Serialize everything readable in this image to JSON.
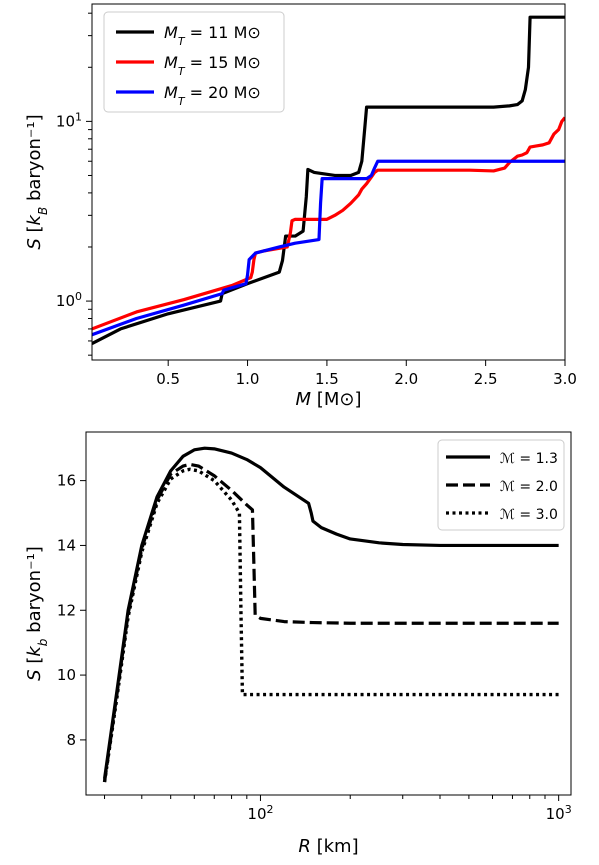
{
  "chart_data": [
    {
      "type": "line",
      "xlabel": "M [M⊙]",
      "ylabel": "S [k_B baryon⁻¹]",
      "xlim": [
        0.02,
        3.0
      ],
      "ylim": [
        0.47,
        45
      ],
      "yscale": "log",
      "x_ticks": [
        0.5,
        1.0,
        1.5,
        2.0,
        2.5,
        3.0
      ],
      "x_tick_labels": [
        "0.5",
        "1.0",
        "1.5",
        "2.0",
        "2.5",
        "3.0"
      ],
      "y_ticks": [
        1,
        10
      ],
      "y_tick_labels": [
        "10⁰",
        "10¹"
      ],
      "legend": "top-left",
      "grid": false,
      "series": [
        {
          "name": "M_T = 11 M⊙",
          "color": "#000000",
          "x": [
            0.02,
            0.2,
            0.5,
            0.83,
            0.84,
            1.0,
            1.2,
            1.22,
            1.24,
            1.3,
            1.35,
            1.37,
            1.38,
            1.42,
            1.55,
            1.65,
            1.7,
            1.72,
            1.74,
            1.75,
            2.0,
            2.3,
            2.55,
            2.65,
            2.7,
            2.73,
            2.75,
            2.77,
            2.78,
            3.0
          ],
          "y": [
            0.58,
            0.7,
            0.85,
            1.0,
            1.1,
            1.25,
            1.45,
            1.68,
            2.3,
            2.3,
            2.45,
            3.8,
            5.4,
            5.2,
            5.0,
            5.0,
            5.2,
            6.0,
            9.5,
            12.0,
            12.0,
            12.0,
            12.0,
            12.2,
            12.4,
            13.0,
            15.0,
            20.0,
            38.0,
            38.0
          ]
        },
        {
          "name": "M_T = 15 M⊙",
          "color": "#ff0000",
          "x": [
            0.02,
            0.3,
            0.6,
            0.9,
            1.02,
            1.03,
            1.04,
            1.05,
            1.1,
            1.25,
            1.27,
            1.28,
            1.3,
            1.5,
            1.55,
            1.6,
            1.65,
            1.7,
            1.72,
            1.75,
            1.78,
            1.8,
            1.82,
            1.85,
            2.0,
            2.2,
            2.4,
            2.55,
            2.62,
            2.65,
            2.7,
            2.73,
            2.76,
            2.78,
            2.82,
            2.86,
            2.9,
            2.93,
            2.96,
            2.98,
            3.0
          ],
          "y": [
            0.7,
            0.87,
            1.02,
            1.22,
            1.35,
            1.45,
            1.7,
            1.85,
            1.9,
            2.0,
            2.4,
            2.8,
            2.85,
            2.85,
            3.0,
            3.2,
            3.5,
            3.9,
            4.2,
            4.5,
            4.9,
            5.2,
            5.35,
            5.35,
            5.35,
            5.35,
            5.35,
            5.3,
            5.5,
            5.9,
            6.4,
            6.5,
            6.7,
            7.2,
            7.3,
            7.4,
            7.6,
            8.5,
            9.0,
            10.0,
            10.5
          ]
        },
        {
          "name": "M_T = 20 M⊙",
          "color": "#0000ff",
          "x": [
            0.02,
            0.3,
            0.6,
            0.84,
            0.85,
            0.99,
            1.0,
            1.01,
            1.05,
            1.2,
            1.3,
            1.45,
            1.46,
            1.47,
            1.48,
            1.6,
            1.75,
            1.78,
            1.8,
            1.82,
            2.0,
            2.5,
            3.0
          ],
          "y": [
            0.65,
            0.8,
            0.95,
            1.1,
            1.15,
            1.25,
            1.4,
            1.7,
            1.85,
            2.0,
            2.1,
            2.2,
            3.5,
            4.8,
            4.8,
            4.8,
            4.8,
            5.0,
            5.5,
            6.0,
            6.0,
            6.0,
            6.0
          ]
        }
      ]
    },
    {
      "type": "line",
      "xlabel": "R [km]",
      "ylabel": "S [k_b baryon⁻¹]",
      "xscale": "log",
      "xlim": [
        26,
        1100
      ],
      "ylim": [
        6.3,
        17.5
      ],
      "x_ticks": [
        100,
        1000
      ],
      "x_tick_labels": [
        "10²",
        "10³"
      ],
      "y_ticks": [
        8,
        10,
        12,
        14,
        16
      ],
      "y_tick_labels": [
        "8",
        "10",
        "12",
        "14",
        "16"
      ],
      "legend": "top-right",
      "grid": false,
      "series": [
        {
          "name": "ℳ = 1.3",
          "dash": "solid",
          "x": [
            30,
            33,
            36,
            40,
            45,
            50,
            55,
            60,
            65,
            70,
            80,
            90,
            100,
            120,
            145,
            148,
            150,
            160,
            180,
            200,
            250,
            300,
            400,
            600,
            1000
          ],
          "y": [
            6.8,
            9.5,
            12.0,
            14.0,
            15.5,
            16.3,
            16.75,
            16.95,
            17.0,
            16.98,
            16.85,
            16.65,
            16.4,
            15.8,
            15.3,
            15.0,
            14.75,
            14.55,
            14.35,
            14.2,
            14.08,
            14.03,
            14.0,
            14.0,
            14.0
          ]
        },
        {
          "name": "ℳ = 2.0",
          "dash": "dashed",
          "x": [
            30,
            33,
            36,
            40,
            45,
            50,
            55,
            58,
            62,
            70,
            80,
            90,
            94,
            95,
            96,
            100,
            120,
            150,
            200,
            300,
            500,
            1000
          ],
          "y": [
            6.7,
            9.4,
            11.9,
            13.9,
            15.4,
            16.2,
            16.45,
            16.5,
            16.45,
            16.15,
            15.7,
            15.25,
            15.1,
            13.5,
            11.85,
            11.75,
            11.65,
            11.62,
            11.6,
            11.6,
            11.6,
            11.6
          ]
        },
        {
          "name": "ℳ = 3.0",
          "dash": "dotted",
          "x": [
            30,
            33,
            36,
            40,
            45,
            50,
            55,
            58,
            62,
            70,
            80,
            85,
            86,
            87,
            90,
            100,
            200,
            400,
            1000
          ],
          "y": [
            6.7,
            9.3,
            11.8,
            13.8,
            15.3,
            16.05,
            16.3,
            16.35,
            16.3,
            16.0,
            15.4,
            15.0,
            12.0,
            9.4,
            9.4,
            9.4,
            9.4,
            9.4,
            9.4
          ]
        }
      ]
    }
  ]
}
